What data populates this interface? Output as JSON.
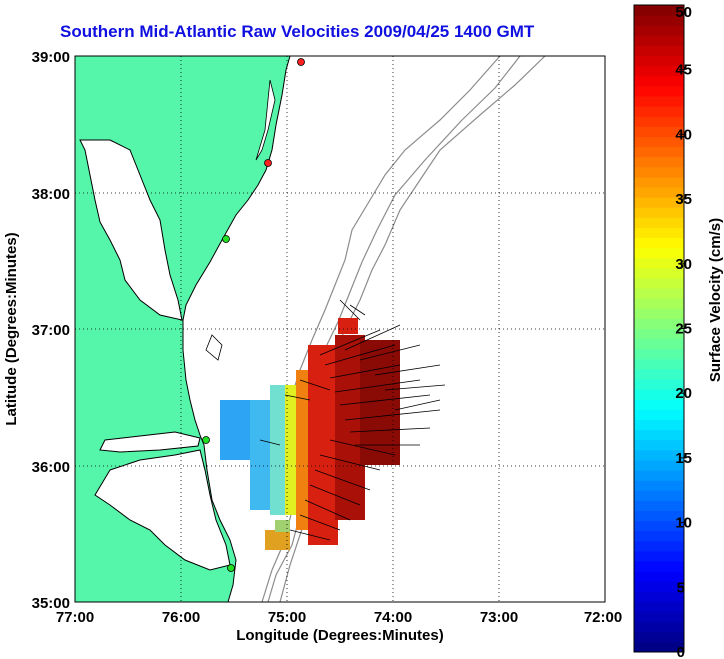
{
  "title": "Southern Mid-Atlantic Raw Velocities 2009/04/25 1400 GMT",
  "x_axis": {
    "label": "Longitude (Degrees:Minutes)",
    "ticks": [
      "77:00",
      "76:00",
      "75:00",
      "74:00",
      "73:00",
      "72:00"
    ]
  },
  "y_axis": {
    "label": "Latitude (Degrees:Minutes)",
    "ticks": [
      "39:00",
      "38:00",
      "37:00",
      "36:00",
      "35:00"
    ]
  },
  "colorbar": {
    "label": "Surface Velocity (cm/s)",
    "ticks": [
      "0",
      "5",
      "10",
      "15",
      "20",
      "25",
      "30",
      "35",
      "40",
      "45",
      "50"
    ],
    "min": 0,
    "max": 50,
    "colormap": "jet"
  },
  "colors": {
    "title": "#1010e0",
    "land": "#55f5aa",
    "coastline": "#000000",
    "bathymetry": "#8c8c8c",
    "station_active": "#ff2020",
    "station_inactive": "#20e020",
    "grid": "#000000"
  },
  "map_extent": {
    "lon_west": -77,
    "lon_east": -72,
    "lat_south": 35,
    "lat_north": 39
  },
  "grid": "dotted"
}
